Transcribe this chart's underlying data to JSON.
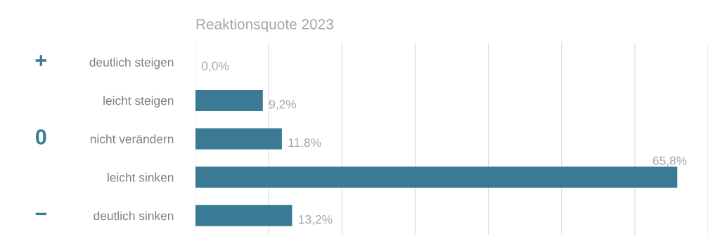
{
  "chart_data": {
    "type": "bar",
    "orientation": "horizontal",
    "title": "Reaktionsquote 2023",
    "categories": [
      "deutlich steigen",
      "leicht steigen",
      "nicht verändern",
      "leicht sinken",
      "deutlich sinken"
    ],
    "values": [
      0.0,
      9.2,
      11.8,
      65.8,
      13.2
    ],
    "value_labels": [
      "0,0%",
      "9,2%",
      "11,8%",
      "65,8%",
      "13,2%"
    ],
    "color": "#3a7a94",
    "xlim": [
      0,
      70
    ],
    "xticks": [
      {
        "value": 0,
        "label": null
      },
      {
        "value": 10,
        "label": null
      },
      {
        "value": 20,
        "label": null
      },
      {
        "value": 30,
        "label": null
      },
      {
        "value": 40,
        "label": null
      },
      {
        "value": 50,
        "label": null
      },
      {
        "value": 60,
        "label": null
      },
      {
        "value": 70,
        "label": null
      }
    ],
    "grid": "x",
    "tick_labels": "y",
    "annotations": [
      "+",
      "0",
      "−"
    ]
  }
}
